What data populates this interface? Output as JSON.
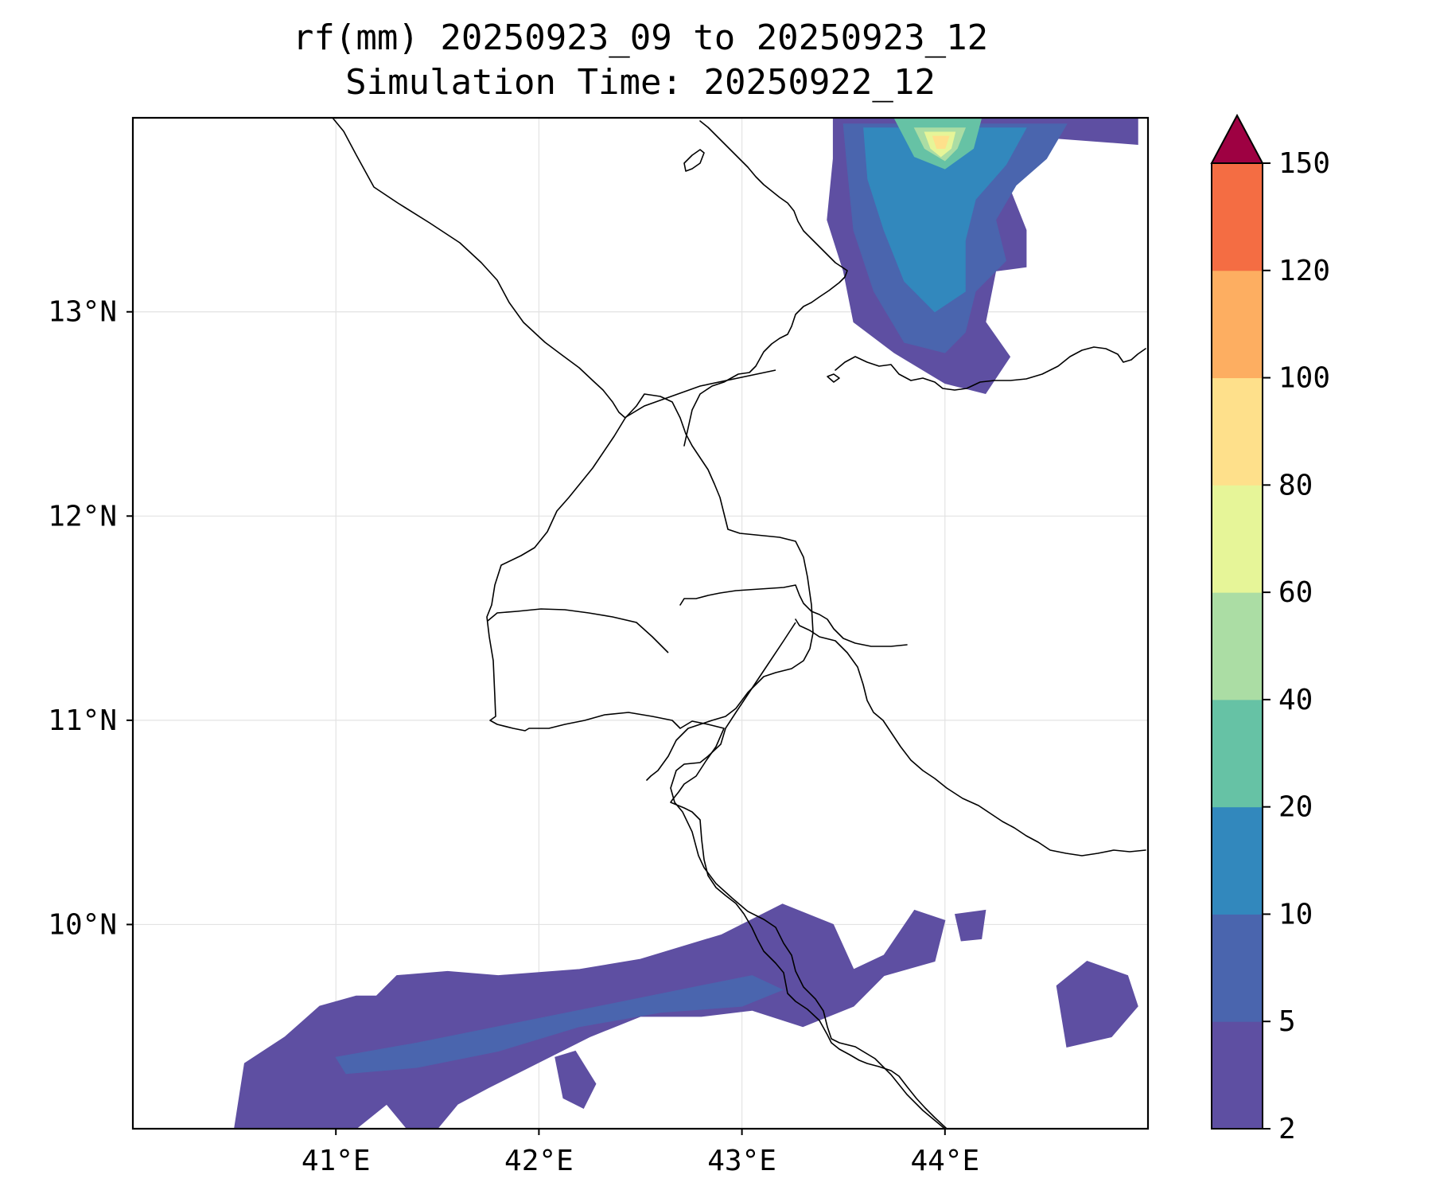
{
  "title": {
    "line1": "rf(mm) 20250923_09 to 20250923_12",
    "line2": "Simulation Time: 20250922_12"
  },
  "map": {
    "lon_range": [
      40.0,
      45.0
    ],
    "lat_range": [
      9.0,
      13.95
    ],
    "lon_ticks": [
      41,
      42,
      43,
      44
    ],
    "lat_ticks": [
      10,
      11,
      12,
      13
    ],
    "lon_tick_labels": [
      "41°E",
      "42°E",
      "43°E",
      "44°E"
    ],
    "lat_tick_labels": [
      "10°N",
      "11°N",
      "12°N",
      "13°N"
    ],
    "gridlines": true
  },
  "colorbar": {
    "levels": [
      2,
      5,
      10,
      20,
      40,
      60,
      80,
      100,
      120,
      150
    ],
    "labels": [
      "2",
      "5",
      "10",
      "20",
      "40",
      "60",
      "80",
      "100",
      "120",
      "150"
    ],
    "colors": [
      "#5e4fa2",
      "#4a65ae",
      "#3288bd",
      "#66c2a5",
      "#abdda4",
      "#e6f598",
      "#fee08b",
      "#fdae61",
      "#f46d43",
      "#d53e4f"
    ],
    "extend_color": "#9e0142",
    "extend": "max"
  },
  "precip_regions": [
    {
      "level": "2-5",
      "color": "#5e4fa2",
      "lonlat": [
        [
          40.5,
          9.0
        ],
        [
          40.55,
          9.32
        ],
        [
          40.75,
          9.45
        ],
        [
          40.92,
          9.6
        ],
        [
          41.1,
          9.65
        ],
        [
          41.2,
          9.65
        ],
        [
          41.3,
          9.75
        ],
        [
          41.55,
          9.77
        ],
        [
          41.8,
          9.75
        ],
        [
          42.2,
          9.78
        ],
        [
          42.5,
          9.83
        ],
        [
          42.9,
          9.95
        ],
        [
          43.2,
          10.1
        ],
        [
          43.45,
          10.0
        ],
        [
          43.55,
          9.78
        ],
        [
          43.7,
          9.85
        ],
        [
          43.85,
          10.07
        ],
        [
          44.0,
          10.02
        ],
        [
          43.95,
          9.82
        ],
        [
          43.7,
          9.75
        ],
        [
          43.55,
          9.6
        ],
        [
          43.3,
          9.5
        ],
        [
          43.05,
          9.58
        ],
        [
          42.8,
          9.55
        ],
        [
          42.5,
          9.55
        ],
        [
          42.25,
          9.45
        ],
        [
          41.95,
          9.3
        ],
        [
          41.75,
          9.2
        ],
        [
          41.6,
          9.12
        ],
        [
          41.5,
          9.0
        ],
        [
          41.35,
          9.0
        ],
        [
          41.25,
          9.12
        ],
        [
          41.1,
          9.0
        ]
      ]
    },
    {
      "level": "2-5",
      "color": "#5e4fa2",
      "lonlat": [
        [
          44.6,
          9.4
        ],
        [
          44.82,
          9.45
        ],
        [
          44.95,
          9.6
        ],
        [
          44.9,
          9.75
        ],
        [
          44.7,
          9.82
        ],
        [
          44.55,
          9.7
        ]
      ]
    },
    {
      "level": "2-5",
      "color": "#5e4fa2",
      "lonlat": [
        [
          42.08,
          9.35
        ],
        [
          42.18,
          9.38
        ],
        [
          42.28,
          9.22
        ],
        [
          42.22,
          9.1
        ],
        [
          42.12,
          9.15
        ]
      ]
    },
    {
      "level": "2-5",
      "color": "#5e4fa2",
      "lonlat": [
        [
          44.05,
          10.05
        ],
        [
          44.2,
          10.07
        ],
        [
          44.18,
          9.93
        ],
        [
          44.08,
          9.92
        ]
      ]
    },
    {
      "level": "5-10",
      "color": "#4a65ae",
      "lonlat": [
        [
          41.0,
          9.35
        ],
        [
          41.4,
          9.42
        ],
        [
          41.8,
          9.5
        ],
        [
          42.3,
          9.6
        ],
        [
          42.7,
          9.68
        ],
        [
          43.05,
          9.75
        ],
        [
          43.2,
          9.68
        ],
        [
          43.0,
          9.6
        ],
        [
          42.6,
          9.57
        ],
        [
          42.2,
          9.5
        ],
        [
          41.8,
          9.38
        ],
        [
          41.4,
          9.3
        ],
        [
          41.05,
          9.27
        ]
      ]
    },
    {
      "level": "2-5",
      "color": "#5e4fa2",
      "lonlat": [
        [
          43.45,
          13.95
        ],
        [
          44.95,
          13.95
        ],
        [
          44.95,
          13.82
        ],
        [
          44.55,
          13.85
        ],
        [
          44.45,
          13.72
        ],
        [
          44.3,
          13.65
        ],
        [
          44.4,
          13.4
        ],
        [
          44.4,
          13.22
        ],
        [
          44.25,
          13.2
        ],
        [
          44.2,
          12.95
        ],
        [
          44.32,
          12.78
        ],
        [
          44.2,
          12.6
        ],
        [
          44.0,
          12.65
        ],
        [
          43.75,
          12.8
        ],
        [
          43.55,
          12.95
        ],
        [
          43.5,
          13.2
        ],
        [
          43.42,
          13.45
        ],
        [
          43.45,
          13.75
        ]
      ]
    },
    {
      "level": "5-10",
      "color": "#4a65ae",
      "lonlat": [
        [
          43.5,
          13.92
        ],
        [
          44.6,
          13.92
        ],
        [
          44.5,
          13.75
        ],
        [
          44.35,
          13.62
        ],
        [
          44.25,
          13.45
        ],
        [
          44.3,
          13.25
        ],
        [
          44.15,
          13.1
        ],
        [
          44.1,
          12.9
        ],
        [
          44.0,
          12.8
        ],
        [
          43.8,
          12.85
        ],
        [
          43.65,
          13.1
        ],
        [
          43.55,
          13.4
        ],
        [
          43.52,
          13.7
        ]
      ]
    },
    {
      "level": "10-20",
      "color": "#3288bd",
      "lonlat": [
        [
          43.6,
          13.9
        ],
        [
          44.4,
          13.9
        ],
        [
          44.3,
          13.72
        ],
        [
          44.15,
          13.55
        ],
        [
          44.1,
          13.35
        ],
        [
          44.1,
          13.1
        ],
        [
          43.95,
          13.0
        ],
        [
          43.8,
          13.15
        ],
        [
          43.7,
          13.4
        ],
        [
          43.62,
          13.65
        ]
      ]
    },
    {
      "level": "20-40",
      "color": "#66c2a5",
      "lonlat": [
        [
          43.75,
          13.95
        ],
        [
          44.18,
          13.95
        ],
        [
          44.14,
          13.8
        ],
        [
          44.0,
          13.7
        ],
        [
          43.85,
          13.76
        ]
      ]
    },
    {
      "level": "40-60",
      "color": "#abdda4",
      "lonlat": [
        [
          43.85,
          13.9
        ],
        [
          44.1,
          13.9
        ],
        [
          44.06,
          13.8
        ],
        [
          44.0,
          13.74
        ],
        [
          43.9,
          13.8
        ]
      ]
    },
    {
      "level": "60-80",
      "color": "#e6f598",
      "lonlat": [
        [
          43.9,
          13.88
        ],
        [
          44.05,
          13.88
        ],
        [
          44.03,
          13.8
        ],
        [
          43.98,
          13.76
        ],
        [
          43.93,
          13.8
        ]
      ]
    },
    {
      "level": "80-100",
      "color": "#fee08b",
      "lonlat": [
        [
          43.94,
          13.86
        ],
        [
          44.02,
          13.86
        ],
        [
          44.0,
          13.8
        ],
        [
          43.96,
          13.8
        ]
      ]
    }
  ]
}
